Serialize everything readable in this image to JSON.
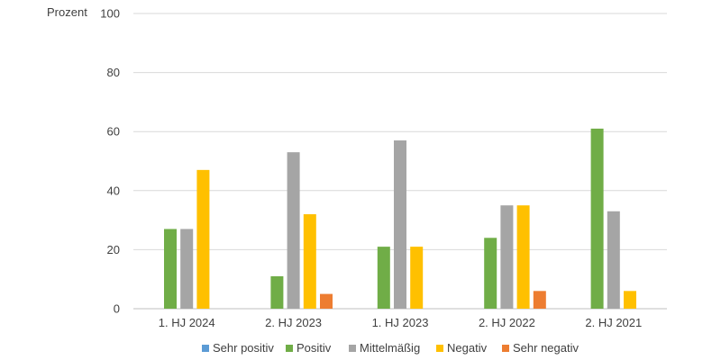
{
  "chart_data": {
    "type": "bar",
    "ylabel": "Prozent",
    "ylim": [
      0,
      100
    ],
    "yticks": [
      0,
      20,
      40,
      60,
      80,
      100
    ],
    "grid": true,
    "legend_position": "bottom",
    "categories": [
      "1. HJ 2024",
      "2. HJ 2023",
      "1. HJ 2023",
      "2. HJ 2022",
      "2. HJ 2021"
    ],
    "series": [
      {
        "name": "Sehr positiv",
        "color": "#5b9bd5",
        "values": [
          0,
          0,
          0,
          0,
          0
        ]
      },
      {
        "name": "Positiv",
        "color": "#70ad47",
        "values": [
          27,
          11,
          21,
          24,
          61
        ]
      },
      {
        "name": "Mittelmäßig",
        "color": "#a5a5a5",
        "values": [
          27,
          53,
          57,
          35,
          33
        ]
      },
      {
        "name": "Negativ",
        "color": "#ffc000",
        "values": [
          47,
          32,
          21,
          35,
          6
        ]
      },
      {
        "name": "Sehr negativ",
        "color": "#ed7d31",
        "values": [
          0,
          5,
          0,
          6,
          0
        ]
      }
    ]
  }
}
